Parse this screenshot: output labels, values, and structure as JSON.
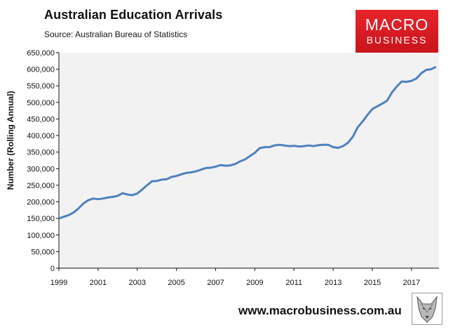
{
  "header": {
    "title": "Australian Education Arrivals",
    "source": "Source: Australian Bureau of Statistics"
  },
  "logo": {
    "line1": "MACRO",
    "line2": "BUSINESS",
    "color": "#d81e25"
  },
  "footer": {
    "url": "www.macrobusiness.com.au",
    "mascot_icon": "wolf-icon"
  },
  "chart_data": {
    "type": "line",
    "title": "Australian Education Arrivals",
    "ylabel": "Number (Rolling Annual)",
    "xlabel": "",
    "ylim": [
      0,
      650000
    ],
    "xlim": [
      1999.0,
      2018.4
    ],
    "y_ticks": [
      0,
      50000,
      100000,
      150000,
      200000,
      250000,
      300000,
      350000,
      400000,
      450000,
      500000,
      550000,
      600000,
      650000
    ],
    "y_tick_labels": [
      "0",
      "50,000",
      "100,000",
      "150,000",
      "200,000",
      "250,000",
      "300,000",
      "350,000",
      "400,000",
      "450,000",
      "500,000",
      "550,000",
      "600,000",
      "650,000"
    ],
    "x_ticks": [
      1999,
      2001,
      2003,
      2005,
      2007,
      2009,
      2011,
      2013,
      2015,
      2017
    ],
    "x_tick_labels": [
      "1999",
      "2001",
      "2003",
      "2005",
      "2007",
      "2009",
      "2011",
      "2013",
      "2015",
      "2017"
    ],
    "grid": false,
    "plot_background": "#f2f2f2",
    "series": [
      {
        "color": "#4f81bd",
        "x": [
          1999.0,
          1999.25,
          1999.5,
          1999.75,
          2000.0,
          2000.25,
          2000.5,
          2000.75,
          2001.0,
          2001.25,
          2001.5,
          2001.75,
          2002.0,
          2002.25,
          2002.5,
          2002.75,
          2003.0,
          2003.25,
          2003.5,
          2003.75,
          2004.0,
          2004.25,
          2004.5,
          2004.75,
          2005.0,
          2005.25,
          2005.5,
          2005.75,
          2006.0,
          2006.25,
          2006.5,
          2006.75,
          2007.0,
          2007.25,
          2007.5,
          2007.75,
          2008.0,
          2008.25,
          2008.5,
          2008.75,
          2009.0,
          2009.25,
          2009.5,
          2009.75,
          2010.0,
          2010.25,
          2010.5,
          2010.75,
          2011.0,
          2011.25,
          2011.5,
          2011.75,
          2012.0,
          2012.25,
          2012.5,
          2012.75,
          2013.0,
          2013.25,
          2013.5,
          2013.75,
          2014.0,
          2014.25,
          2014.5,
          2014.75,
          2015.0,
          2015.25,
          2015.5,
          2015.75,
          2016.0,
          2016.25,
          2016.5,
          2016.75,
          2017.0,
          2017.25,
          2017.5,
          2017.75,
          2018.0,
          2018.25
        ],
        "values": [
          150000,
          155000,
          160000,
          168000,
          180000,
          195000,
          205000,
          210000,
          208000,
          210000,
          213000,
          215000,
          218000,
          226000,
          222000,
          220000,
          225000,
          237000,
          250000,
          262000,
          263000,
          267000,
          268000,
          275000,
          278000,
          283000,
          287000,
          289000,
          292000,
          297000,
          302000,
          303000,
          306000,
          311000,
          309000,
          310000,
          314000,
          322000,
          328000,
          338000,
          348000,
          362000,
          365000,
          365000,
          370000,
          372000,
          370000,
          368000,
          369000,
          367000,
          368000,
          370000,
          368000,
          371000,
          372000,
          372000,
          365000,
          363000,
          368000,
          378000,
          396000,
          425000,
          442000,
          462000,
          480000,
          488000,
          496000,
          505000,
          530000,
          548000,
          563000,
          562000,
          565000,
          572000,
          588000,
          598000,
          600000,
          607000
        ]
      }
    ]
  }
}
